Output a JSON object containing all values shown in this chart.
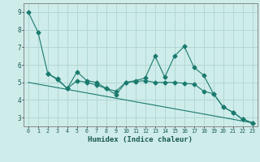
{
  "xlabel": "Humidex (Indice chaleur)",
  "background_color": "#ceecea",
  "line_color": "#1a7a6e",
  "grid_color": "#b2d8d4",
  "xlim": [
    -0.5,
    23.5
  ],
  "ylim": [
    2.5,
    9.5
  ],
  "xticks": [
    0,
    1,
    2,
    3,
    4,
    5,
    6,
    7,
    8,
    9,
    10,
    11,
    12,
    13,
    14,
    15,
    16,
    17,
    18,
    19,
    20,
    21,
    22,
    23
  ],
  "yticks": [
    3,
    4,
    5,
    6,
    7,
    8,
    9
  ],
  "line1_x": [
    0,
    1,
    2,
    3,
    4,
    5,
    6,
    7,
    8,
    9,
    10,
    11,
    12,
    13,
    14,
    15,
    16,
    17,
    18,
    19,
    20,
    21,
    22,
    23
  ],
  "line1_y": [
    9.0,
    7.85,
    5.5,
    5.2,
    4.65,
    5.6,
    5.1,
    5.0,
    4.65,
    4.3,
    5.0,
    5.1,
    5.25,
    6.5,
    5.3,
    6.5,
    7.05,
    5.85,
    5.4,
    4.35,
    3.6,
    3.3,
    2.9,
    2.7
  ],
  "line2_x": [
    2,
    3,
    4,
    5,
    6,
    7,
    8,
    9,
    10,
    11,
    12,
    13,
    14,
    15,
    16,
    17,
    18,
    19,
    20,
    21,
    22,
    23
  ],
  "line2_y": [
    5.5,
    5.15,
    4.65,
    5.1,
    5.0,
    4.85,
    4.65,
    4.5,
    5.0,
    5.05,
    5.1,
    5.0,
    5.0,
    5.0,
    4.95,
    4.9,
    4.5,
    4.35,
    3.6,
    3.3,
    2.9,
    2.7
  ],
  "line3_x": [
    0,
    23
  ],
  "line3_y": [
    5.0,
    2.7
  ]
}
